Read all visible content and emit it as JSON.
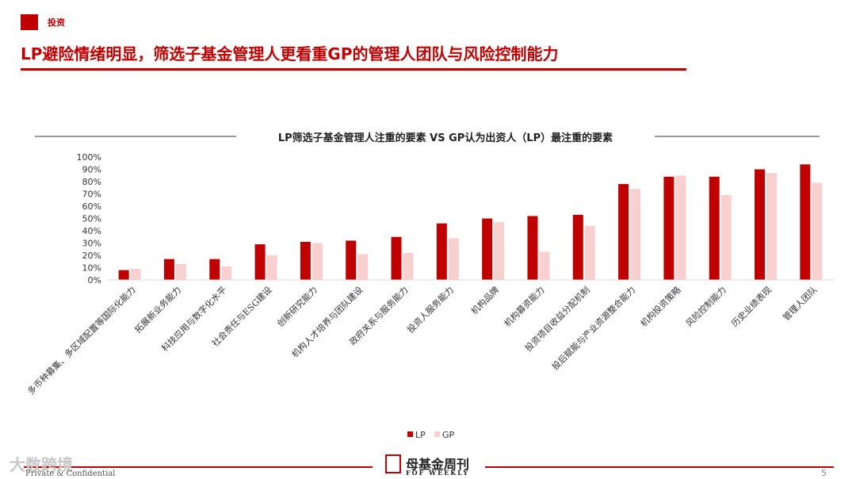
{
  "header": {
    "section_tag": "投资",
    "title": "LP避险情绪明显，筛选子基金管理人更看重GP的管理人团队与风险控制能力"
  },
  "chart_data": {
    "type": "bar",
    "title": "LP筛选子基金管理人注重的要素 VS GP认为出资人（LP）最注重的要素",
    "categories": [
      "多币种募集、多区域配置等国际化能力",
      "拓展新业务能力",
      "科技应用与数字化水平",
      "社会责任与ESG建设",
      "创新研究能力",
      "机构人才培养与团队建设",
      "政府关系与服务能力",
      "投资人服务能力",
      "机构品牌",
      "机构募资能力",
      "投资项目收益分配机制",
      "投后赋能与产业资源整合能力",
      "机构投资策略",
      "风险控制能力",
      "历史业绩表现",
      "管理人团队"
    ],
    "series": [
      {
        "name": "LP",
        "color": "#c00000",
        "values": [
          8,
          17,
          17,
          29,
          31,
          32,
          35,
          46,
          50,
          52,
          53,
          78,
          84,
          84,
          90,
          94
        ]
      },
      {
        "name": "GP",
        "color": "#f8d0cf",
        "values": [
          9,
          13,
          11,
          20,
          30,
          21,
          22,
          34,
          47,
          23,
          44,
          74,
          85,
          69,
          87,
          79
        ]
      }
    ],
    "ylim": [
      0,
      100
    ],
    "yticks": [
      "0%",
      "10%",
      "20%",
      "30%",
      "40%",
      "50%",
      "60%",
      "70%",
      "80%",
      "90%",
      "100%"
    ],
    "legend": "bottom-center"
  },
  "footer": {
    "note": "Private & Confidential",
    "watermark": "大数跨境",
    "logo_title": "母基金周刊",
    "logo_subtitle": "FOF WEEKLY",
    "page": "5"
  }
}
